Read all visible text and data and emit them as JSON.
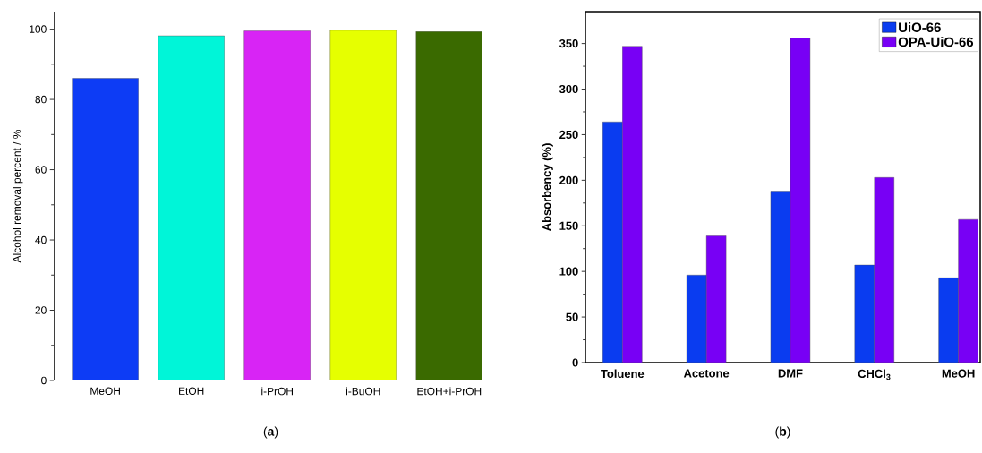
{
  "chart_data": [
    {
      "type": "bar",
      "ylabel": "Alcohol removal percent / %",
      "categories": [
        "MeOH",
        "EtOH",
        "i-PrOH",
        "i-BuOH",
        "EtOH+i-PrOH"
      ],
      "values": [
        86,
        98.1,
        99.5,
        99.7,
        99.3
      ],
      "colors": [
        "#0d3cf5",
        "#00f5d8",
        "#d824f5",
        "#e6ff00",
        "#3a6a00"
      ],
      "ylim": [
        0,
        105
      ],
      "yticks": [
        0,
        20,
        40,
        60,
        80,
        100
      ],
      "annotations": [
        "(**a**)"
      ]
    },
    {
      "type": "bar",
      "ylabel": "Absorbency (%)",
      "categories": [
        "Toluene",
        "Acetone",
        "DMF",
        "CHCl$_{3}$",
        "MeOH"
      ],
      "series": [
        {
          "name": "UiO-66",
          "color": "#0a3cf0",
          "values": [
            264,
            96,
            188,
            107,
            93
          ]
        },
        {
          "name": "OPA-UiO-66",
          "color": "#7800f5",
          "values": [
            347,
            139,
            356,
            203,
            157
          ]
        }
      ],
      "ylim": [
        0,
        385
      ],
      "yticks": [
        0,
        50,
        100,
        150,
        200,
        250,
        300,
        350
      ],
      "legend": "top right",
      "annotations": [
        "(**b**)"
      ]
    }
  ]
}
